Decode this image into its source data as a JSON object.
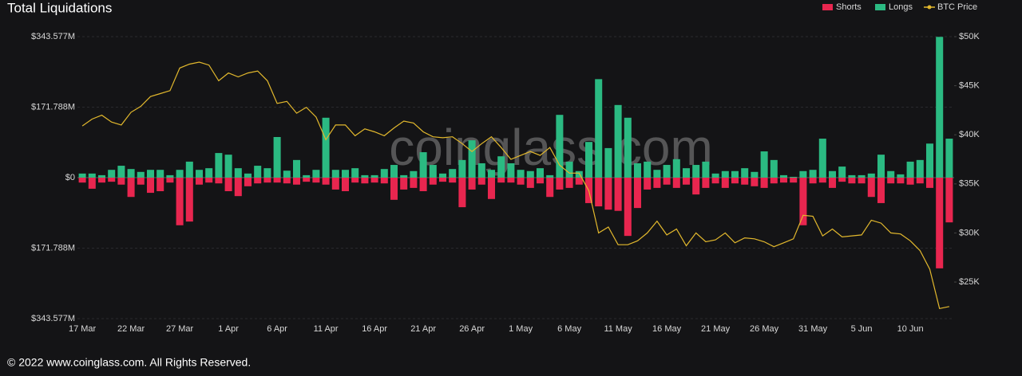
{
  "chart_data": {
    "type": "bar",
    "title": "Total Liquidations",
    "watermark": "coinglass.com",
    "footer": "© 2022 www.coinglass.com. All Rights Reserved.",
    "categories": [
      "17 Mar",
      null,
      null,
      null,
      null,
      "22 Mar",
      null,
      null,
      null,
      null,
      "27 Mar",
      null,
      null,
      null,
      null,
      "1 Apr",
      null,
      null,
      null,
      null,
      "6 Apr",
      null,
      null,
      null,
      null,
      "11 Apr",
      null,
      null,
      null,
      null,
      "16 Apr",
      null,
      null,
      null,
      null,
      "21 Apr",
      null,
      null,
      null,
      null,
      "26 Apr",
      null,
      null,
      null,
      null,
      "1 May",
      null,
      null,
      null,
      null,
      "6 May",
      null,
      null,
      null,
      null,
      "11 May",
      null,
      null,
      null,
      null,
      "16 May",
      null,
      null,
      null,
      null,
      "21 May",
      null,
      null,
      null,
      null,
      "26 May",
      null,
      null,
      null,
      null,
      "31 May",
      null,
      null,
      null,
      null,
      "5 Jun",
      null,
      null,
      null,
      null,
      "10 Jun",
      null,
      null,
      null,
      null
    ],
    "series": [
      {
        "name": "Shorts",
        "color": "#e8264f",
        "type": "bar",
        "values": [
          -12,
          -27,
          -12,
          -10,
          -17,
          -47,
          -17,
          -37,
          -33,
          -12,
          -116,
          -107,
          -17,
          -12,
          -14,
          -33,
          -45,
          -21,
          -14,
          -12,
          -12,
          -14,
          -17,
          -10,
          -12,
          -17,
          -29,
          -33,
          -12,
          -14,
          -12,
          -14,
          -54,
          -29,
          -25,
          -33,
          -17,
          -10,
          -12,
          -72,
          -29,
          -17,
          -52,
          -12,
          -12,
          -17,
          -25,
          -14,
          -47,
          -29,
          -25,
          -17,
          -62,
          -70,
          -78,
          -81,
          -142,
          -74,
          -29,
          -25,
          -17,
          -25,
          -17,
          -41,
          -25,
          -14,
          -25,
          -14,
          -17,
          -21,
          -25,
          -14,
          -12,
          -12,
          -116,
          -14,
          -12,
          -25,
          -10,
          -14,
          -14,
          -47,
          -62,
          -14,
          -14,
          -17,
          -14,
          -25,
          -221,
          -109
        ]
      },
      {
        "name": "Longs",
        "color": "#2bba82",
        "type": "bar",
        "values": [
          10,
          10,
          6,
          19,
          29,
          21,
          14,
          19,
          19,
          6,
          19,
          39,
          19,
          23,
          60,
          56,
          23,
          10,
          29,
          23,
          99,
          17,
          43,
          6,
          19,
          146,
          19,
          19,
          23,
          6,
          6,
          21,
          31,
          6,
          16,
          62,
          31,
          10,
          21,
          43,
          91,
          35,
          19,
          52,
          35,
          19,
          16,
          23,
          6,
          153,
          39,
          16,
          87,
          240,
          72,
          177,
          146,
          35,
          39,
          19,
          31,
          45,
          23,
          31,
          39,
          10,
          16,
          16,
          23,
          14,
          64,
          43,
          6,
          2,
          16,
          19,
          95,
          16,
          27,
          6,
          6,
          10,
          56,
          16,
          8,
          39,
          43,
          83,
          343,
          95
        ]
      },
      {
        "name": "BTC Price",
        "color": "#e2b82d",
        "type": "line",
        "axis": "y2",
        "values": [
          40.9,
          41.6,
          42.0,
          41.3,
          41.0,
          42.3,
          42.9,
          43.9,
          44.2,
          44.5,
          46.8,
          47.2,
          47.4,
          47.1,
          45.5,
          46.3,
          45.9,
          46.3,
          46.5,
          45.5,
          43.2,
          43.4,
          42.2,
          42.8,
          41.8,
          39.5,
          41.0,
          41.0,
          39.9,
          40.6,
          40.3,
          39.9,
          40.7,
          41.4,
          41.2,
          40.3,
          39.8,
          39.7,
          39.8,
          39.1,
          38.3,
          39.1,
          39.8,
          38.7,
          37.5,
          37.9,
          38.3,
          37.9,
          38.7,
          36.9,
          36.1,
          36.1,
          34.3,
          30.0,
          30.6,
          28.8,
          28.8,
          29.2,
          30.0,
          31.2,
          29.8,
          30.4,
          28.7,
          30.0,
          29.1,
          29.3,
          30.0,
          29.0,
          29.5,
          29.4,
          29.1,
          28.6,
          29.0,
          29.4,
          31.8,
          31.7,
          29.7,
          30.4,
          29.6,
          29.7,
          29.8,
          31.3,
          31.0,
          30.0,
          29.9,
          29.2,
          28.2,
          26.3,
          22.3,
          22.5
        ]
      }
    ],
    "ylim": [
      -343.577,
      343.577
    ],
    "yticks": [
      {
        "value": 343.577,
        "label": "$343.577M"
      },
      {
        "value": 171.788,
        "label": "$171.788M"
      },
      {
        "value": 0,
        "label": "$0"
      },
      {
        "value": -171.788,
        "label": "$171.788M"
      },
      {
        "value": -343.577,
        "label": "$343.577M"
      }
    ],
    "y2lim": [
      21.27,
      50
    ],
    "y2ticks": [
      {
        "value": 50,
        "label": "$50K"
      },
      {
        "value": 45,
        "label": "$45K"
      },
      {
        "value": 40,
        "label": "$40K"
      },
      {
        "value": 35,
        "label": "$35K"
      },
      {
        "value": 30,
        "label": "$30K"
      },
      {
        "value": 25,
        "label": "$25K"
      }
    ],
    "grid": true,
    "legend": "top-right"
  }
}
